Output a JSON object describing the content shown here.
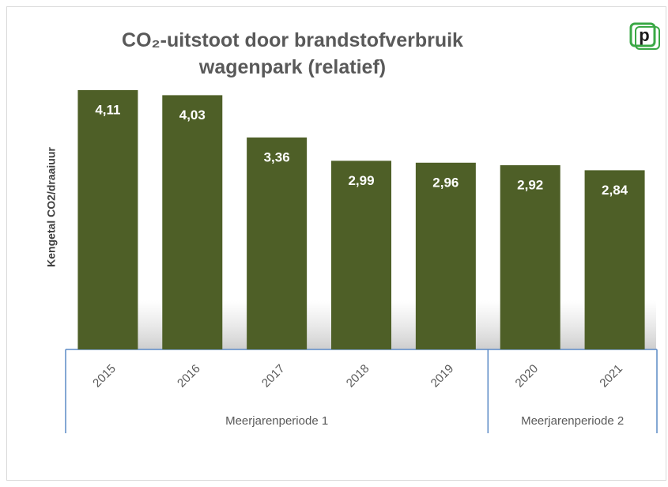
{
  "chart_data": {
    "type": "bar",
    "title": "CO₂-uitstoot door brandstofverbruik wagenpark (relatief)",
    "y_label": "Kengetal CO2/draaiuur",
    "logo": "p",
    "color": "#4e5f27",
    "axis_color": "#5b8ac6",
    "groups": [
      {
        "name": "Meerjarenperiode 1",
        "categories": [
          "2015",
          "2016",
          "2017",
          "2018",
          "2019"
        ],
        "values": [
          4.11,
          4.03,
          3.36,
          2.99,
          2.96
        ],
        "value_labels": [
          "4,11",
          "4,03",
          "3,36",
          "2,99",
          "2,96"
        ]
      },
      {
        "name": "Meerjarenperiode 2",
        "categories": [
          "2020",
          "2021"
        ],
        "values": [
          2.92,
          2.84
        ],
        "value_labels": [
          "2,92",
          "2,84"
        ]
      }
    ]
  }
}
